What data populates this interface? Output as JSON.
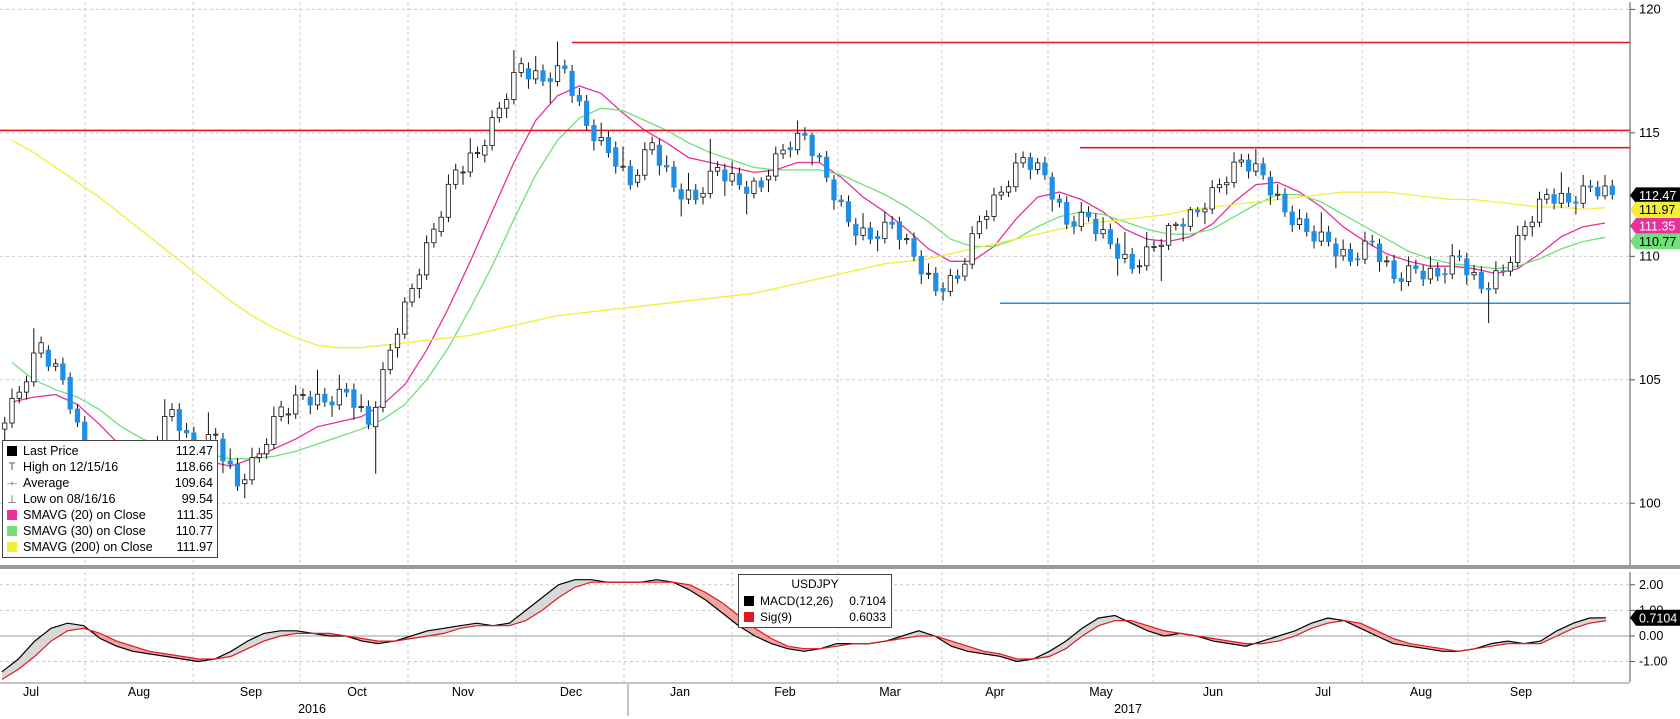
{
  "chart_data": [
    {
      "type": "candlestick",
      "title": "",
      "ylim": [
        97.5,
        120.3
      ],
      "y_ticks": [
        "120",
        "115",
        "110",
        "105",
        "100"
      ],
      "x_labels": [
        "Jul",
        "Aug",
        "Sep",
        "Oct",
        "Nov",
        "Dec",
        "Jan",
        "Feb",
        "Mar",
        "Apr",
        "May",
        "Jun",
        "Jul",
        "Aug",
        "Sep"
      ],
      "year_labels": [
        "2016",
        "2017"
      ],
      "grid": true,
      "candles_weekly": [
        {
          "o": 103.0,
          "h": 104.9,
          "l": 102.2,
          "c": 104.5
        },
        {
          "o": 104.5,
          "h": 107.5,
          "l": 104.2,
          "c": 106.5
        },
        {
          "o": 106.2,
          "h": 106.4,
          "l": 104.8,
          "c": 105.0
        },
        {
          "o": 105.1,
          "h": 105.3,
          "l": 101.8,
          "c": 102.0
        },
        {
          "o": 102.1,
          "h": 102.4,
          "l": 100.6,
          "c": 101.4
        },
        {
          "o": 101.0,
          "h": 101.4,
          "l": 99.6,
          "c": 100.1
        },
        {
          "o": 100.2,
          "h": 102.8,
          "l": 100.0,
          "c": 102.3
        },
        {
          "o": 102.2,
          "h": 104.5,
          "l": 101.9,
          "c": 103.8
        },
        {
          "o": 103.8,
          "h": 104.1,
          "l": 101.5,
          "c": 102.0
        },
        {
          "o": 102.0,
          "h": 103.7,
          "l": 101.8,
          "c": 102.8
        },
        {
          "o": 102.6,
          "h": 103.1,
          "l": 100.2,
          "c": 100.7
        },
        {
          "o": 100.8,
          "h": 102.4,
          "l": 100.2,
          "c": 102.0
        },
        {
          "o": 102.0,
          "h": 104.3,
          "l": 101.8,
          "c": 103.9
        },
        {
          "o": 103.6,
          "h": 104.8,
          "l": 103.2,
          "c": 104.4
        },
        {
          "o": 104.3,
          "h": 105.4,
          "l": 103.6,
          "c": 104.1
        },
        {
          "o": 104.1,
          "h": 105.2,
          "l": 103.5,
          "c": 104.5
        },
        {
          "o": 104.6,
          "h": 105.1,
          "l": 102.7,
          "c": 103.2
        },
        {
          "o": 103.1,
          "h": 106.5,
          "l": 101.2,
          "c": 106.2
        },
        {
          "o": 106.3,
          "h": 108.9,
          "l": 105.9,
          "c": 108.7
        },
        {
          "o": 108.7,
          "h": 111.4,
          "l": 108.3,
          "c": 111.1
        },
        {
          "o": 111.0,
          "h": 113.9,
          "l": 110.8,
          "c": 113.5
        },
        {
          "o": 113.4,
          "h": 114.8,
          "l": 112.9,
          "c": 114.2
        },
        {
          "o": 114.1,
          "h": 116.3,
          "l": 113.8,
          "c": 116.0
        },
        {
          "o": 116.0,
          "h": 118.7,
          "l": 115.6,
          "c": 117.8
        },
        {
          "o": 117.6,
          "h": 118.2,
          "l": 116.7,
          "c": 117.1
        },
        {
          "o": 117.2,
          "h": 118.7,
          "l": 116.2,
          "c": 117.6
        },
        {
          "o": 117.5,
          "h": 117.8,
          "l": 115.0,
          "c": 115.3
        },
        {
          "o": 115.3,
          "h": 115.9,
          "l": 113.8,
          "c": 114.2
        },
        {
          "o": 114.4,
          "h": 115.2,
          "l": 112.6,
          "c": 112.9
        },
        {
          "o": 113.0,
          "h": 114.9,
          "l": 112.8,
          "c": 114.6
        },
        {
          "o": 114.5,
          "h": 114.9,
          "l": 112.4,
          "c": 112.8
        },
        {
          "o": 112.7,
          "h": 113.4,
          "l": 111.6,
          "c": 112.3
        },
        {
          "o": 112.4,
          "h": 114.9,
          "l": 112.1,
          "c": 113.6
        },
        {
          "o": 113.5,
          "h": 114.0,
          "l": 112.3,
          "c": 112.9
        },
        {
          "o": 112.8,
          "h": 113.2,
          "l": 111.7,
          "c": 112.8
        },
        {
          "o": 113.1,
          "h": 114.6,
          "l": 112.6,
          "c": 114.3
        },
        {
          "o": 114.4,
          "h": 115.5,
          "l": 114.0,
          "c": 114.9
        },
        {
          "o": 114.9,
          "h": 115.0,
          "l": 112.8,
          "c": 113.2
        },
        {
          "o": 113.1,
          "h": 113.3,
          "l": 111.0,
          "c": 111.4
        },
        {
          "o": 111.3,
          "h": 111.9,
          "l": 110.3,
          "c": 110.7
        },
        {
          "o": 110.8,
          "h": 111.8,
          "l": 110.2,
          "c": 111.3
        },
        {
          "o": 111.4,
          "h": 111.6,
          "l": 109.6,
          "c": 110.0
        },
        {
          "o": 110.0,
          "h": 110.4,
          "l": 108.2,
          "c": 108.6
        },
        {
          "o": 108.7,
          "h": 109.5,
          "l": 108.2,
          "c": 109.1
        },
        {
          "o": 109.2,
          "h": 111.7,
          "l": 109.0,
          "c": 111.4
        },
        {
          "o": 111.5,
          "h": 112.9,
          "l": 111.1,
          "c": 112.6
        },
        {
          "o": 112.6,
          "h": 114.4,
          "l": 112.4,
          "c": 114.0
        },
        {
          "o": 114.0,
          "h": 114.2,
          "l": 112.9,
          "c": 113.3
        },
        {
          "o": 113.2,
          "h": 113.4,
          "l": 110.8,
          "c": 111.3
        },
        {
          "o": 111.4,
          "h": 112.2,
          "l": 110.9,
          "c": 111.6
        },
        {
          "o": 111.5,
          "h": 112.0,
          "l": 110.2,
          "c": 110.5
        },
        {
          "o": 110.5,
          "h": 111.4,
          "l": 108.8,
          "c": 109.5
        },
        {
          "o": 109.6,
          "h": 111.0,
          "l": 109.3,
          "c": 110.4
        },
        {
          "o": 110.4,
          "h": 111.4,
          "l": 109.0,
          "c": 111.3
        },
        {
          "o": 111.3,
          "h": 112.0,
          "l": 110.6,
          "c": 111.8
        },
        {
          "o": 111.8,
          "h": 113.2,
          "l": 111.3,
          "c": 112.9
        },
        {
          "o": 112.9,
          "h": 114.3,
          "l": 112.5,
          "c": 113.9
        },
        {
          "o": 113.9,
          "h": 114.5,
          "l": 113.0,
          "c": 113.3
        },
        {
          "o": 113.2,
          "h": 113.6,
          "l": 111.4,
          "c": 111.8
        },
        {
          "o": 111.8,
          "h": 112.2,
          "l": 110.7,
          "c": 111.0
        },
        {
          "o": 111.0,
          "h": 111.8,
          "l": 110.3,
          "c": 110.6
        },
        {
          "o": 110.5,
          "h": 110.9,
          "l": 109.3,
          "c": 109.8
        },
        {
          "o": 109.9,
          "h": 111.0,
          "l": 109.6,
          "c": 110.6
        },
        {
          "o": 110.5,
          "h": 110.7,
          "l": 108.7,
          "c": 109.1
        },
        {
          "o": 109.1,
          "h": 110.0,
          "l": 108.6,
          "c": 109.5
        },
        {
          "o": 109.4,
          "h": 110.0,
          "l": 108.8,
          "c": 109.2
        },
        {
          "o": 109.3,
          "h": 110.5,
          "l": 108.9,
          "c": 110.0
        },
        {
          "o": 109.9,
          "h": 110.2,
          "l": 108.3,
          "c": 108.7
        },
        {
          "o": 108.7,
          "h": 109.8,
          "l": 107.3,
          "c": 109.4
        },
        {
          "o": 109.4,
          "h": 111.6,
          "l": 109.2,
          "c": 111.2
        },
        {
          "o": 111.2,
          "h": 112.8,
          "l": 110.8,
          "c": 112.5
        },
        {
          "o": 112.5,
          "h": 113.4,
          "l": 111.9,
          "c": 112.2
        },
        {
          "o": 112.2,
          "h": 113.3,
          "l": 111.7,
          "c": 112.8
        },
        {
          "o": 112.8,
          "h": 113.3,
          "l": 112.3,
          "c": 112.5
        }
      ],
      "series": [
        {
          "name": "SMAVG (20) on Close",
          "color": "#e8319a",
          "values": [
            104.1,
            104.3,
            104.4,
            104.0,
            103.2,
            102.3,
            101.8,
            101.7,
            101.8,
            101.7,
            101.5,
            101.8,
            102.2,
            102.6,
            103.1,
            103.3,
            103.5,
            104.0,
            104.8,
            106.2,
            107.9,
            109.8,
            111.8,
            113.8,
            115.5,
            116.5,
            116.9,
            116.6,
            115.8,
            115.1,
            114.6,
            114.0,
            113.8,
            113.6,
            113.4,
            113.5,
            113.8,
            113.8,
            113.2,
            112.4,
            111.8,
            111.1,
            110.3,
            109.8,
            109.8,
            110.4,
            111.5,
            112.4,
            112.6,
            112.3,
            111.8,
            111.1,
            110.7,
            110.6,
            110.8,
            111.3,
            112.2,
            112.9,
            113.0,
            112.6,
            112.0,
            111.2,
            110.6,
            110.1,
            109.8,
            109.6,
            109.6,
            109.5,
            109.3,
            109.5,
            110.1,
            110.8,
            111.2,
            111.35
          ]
        },
        {
          "name": "SMAVG (30) on Close",
          "color": "#6fe07a",
          "values": [
            105.7,
            105.0,
            104.6,
            104.3,
            103.8,
            103.1,
            102.6,
            102.3,
            102.1,
            102.0,
            101.8,
            101.8,
            101.9,
            102.1,
            102.4,
            102.7,
            103.0,
            103.4,
            104.0,
            105.0,
            106.3,
            107.9,
            109.6,
            111.5,
            113.3,
            114.7,
            115.6,
            116.0,
            115.9,
            115.5,
            115.1,
            114.6,
            114.2,
            113.9,
            113.6,
            113.5,
            113.5,
            113.5,
            113.3,
            112.9,
            112.5,
            112.0,
            111.4,
            110.7,
            110.4,
            110.4,
            110.7,
            111.2,
            111.6,
            111.8,
            111.7,
            111.4,
            111.1,
            110.9,
            110.9,
            111.1,
            111.6,
            112.1,
            112.5,
            112.5,
            112.2,
            111.7,
            111.2,
            110.7,
            110.2,
            109.9,
            109.7,
            109.6,
            109.5,
            109.6,
            109.9,
            110.3,
            110.6,
            110.77
          ]
        },
        {
          "name": "SMAVG (200) on Close",
          "color": "#f2ee3a",
          "values": [
            114.7,
            114.2,
            113.6,
            113.0,
            112.4,
            111.7,
            111.0,
            110.3,
            109.6,
            108.9,
            108.2,
            107.6,
            107.1,
            106.7,
            106.4,
            106.3,
            106.3,
            106.4,
            106.5,
            106.6,
            106.7,
            106.8,
            107.0,
            107.2,
            107.4,
            107.6,
            107.7,
            107.8,
            107.9,
            108.0,
            108.1,
            108.2,
            108.3,
            108.4,
            108.5,
            108.7,
            108.9,
            109.1,
            109.3,
            109.5,
            109.7,
            109.8,
            109.9,
            110.1,
            110.3,
            110.5,
            110.7,
            110.9,
            111.1,
            111.3,
            111.4,
            111.5,
            111.6,
            111.7,
            111.9,
            112.0,
            112.1,
            112.2,
            112.3,
            112.4,
            112.5,
            112.6,
            112.6,
            112.6,
            112.5,
            112.4,
            112.3,
            112.3,
            112.2,
            112.1,
            112.0,
            112.0,
            111.9,
            111.97
          ]
        }
      ],
      "resistance_lines": [
        {
          "y": 118.66,
          "color": "#e0181f"
        },
        {
          "y": 115.1,
          "color": "#e0181f"
        },
        {
          "y": 114.4,
          "color": "#e0181f"
        }
      ],
      "support_lines": [
        {
          "y": 108.1,
          "color": "#2b8fd8"
        }
      ],
      "right_labels": [
        {
          "text": "112.47",
          "value": 112.47,
          "bg": "#000000",
          "fg": "#ffffff"
        },
        {
          "text": "111.97",
          "value": 111.97,
          "bg": "#f2ee3a",
          "fg": "#000000"
        },
        {
          "text": "111.35",
          "value": 111.35,
          "bg": "#e8319a",
          "fg": "#ffffff"
        },
        {
          "text": "110.77",
          "value": 110.77,
          "bg": "#6fe07a",
          "fg": "#000000"
        }
      ]
    },
    {
      "type": "line",
      "title": "USDJPY",
      "ylim": [
        -1.8,
        2.5
      ],
      "y_ticks": [
        "2.00",
        "1.00",
        "0.00",
        "-1.00"
      ],
      "series": [
        {
          "name": "MACD(12,26)",
          "color": "#000000",
          "values": [
            -1.4,
            -0.9,
            -0.2,
            0.3,
            0.5,
            0.4,
            -0.1,
            -0.4,
            -0.6,
            -0.7,
            -0.8,
            -0.9,
            -1.0,
            -0.9,
            -0.6,
            -0.2,
            0.1,
            0.2,
            0.2,
            0.1,
            0.0,
            0.0,
            -0.2,
            -0.3,
            -0.2,
            0.0,
            0.2,
            0.3,
            0.4,
            0.5,
            0.4,
            0.5,
            1.0,
            1.5,
            2.0,
            2.2,
            2.2,
            2.1,
            2.1,
            2.1,
            2.2,
            2.1,
            1.8,
            1.4,
            0.9,
            0.4,
            0.0,
            -0.3,
            -0.5,
            -0.6,
            -0.5,
            -0.3,
            -0.3,
            -0.3,
            -0.2,
            0.0,
            0.2,
            0.0,
            -0.4,
            -0.6,
            -0.7,
            -0.8,
            -1.0,
            -0.9,
            -0.6,
            -0.2,
            0.3,
            0.7,
            0.8,
            0.5,
            0.2,
            0.0,
            0.1,
            0.0,
            -0.2,
            -0.3,
            -0.4,
            -0.2,
            0.0,
            0.2,
            0.5,
            0.7,
            0.6,
            0.3,
            0.0,
            -0.3,
            -0.4,
            -0.5,
            -0.6,
            -0.6,
            -0.5,
            -0.3,
            -0.2,
            -0.3,
            -0.2,
            0.2,
            0.5,
            0.7,
            0.71
          ]
        },
        {
          "name": "Sig(9)",
          "color": "#e0181f",
          "values": [
            -1.7,
            -1.3,
            -0.8,
            -0.2,
            0.2,
            0.3,
            0.1,
            -0.2,
            -0.4,
            -0.6,
            -0.7,
            -0.8,
            -0.9,
            -0.9,
            -0.8,
            -0.5,
            -0.2,
            0.0,
            0.1,
            0.1,
            0.1,
            0.0,
            -0.1,
            -0.2,
            -0.2,
            -0.1,
            0.0,
            0.1,
            0.3,
            0.4,
            0.4,
            0.4,
            0.6,
            1.0,
            1.5,
            1.9,
            2.1,
            2.1,
            2.1,
            2.1,
            2.1,
            2.1,
            2.0,
            1.7,
            1.3,
            0.8,
            0.3,
            -0.1,
            -0.4,
            -0.5,
            -0.5,
            -0.4,
            -0.3,
            -0.3,
            -0.2,
            -0.1,
            0.0,
            0.0,
            -0.2,
            -0.4,
            -0.6,
            -0.7,
            -0.9,
            -0.9,
            -0.8,
            -0.5,
            0.0,
            0.4,
            0.6,
            0.6,
            0.4,
            0.2,
            0.1,
            0.0,
            -0.1,
            -0.2,
            -0.3,
            -0.3,
            -0.2,
            0.0,
            0.3,
            0.5,
            0.6,
            0.5,
            0.2,
            -0.1,
            -0.3,
            -0.4,
            -0.5,
            -0.6,
            -0.5,
            -0.4,
            -0.3,
            -0.3,
            -0.3,
            0.0,
            0.3,
            0.5,
            0.6
          ]
        }
      ],
      "right_labels": [
        {
          "text": "0.7104",
          "value": 0.7104,
          "bg": "#000000",
          "fg": "#ffffff"
        }
      ]
    }
  ],
  "legend": {
    "items": [
      {
        "marker": "square",
        "color": "#000000",
        "label": "Last Price",
        "value": "112.47"
      },
      {
        "marker": "T",
        "color": "#555555",
        "label": "High on 12/15/16",
        "value": "118.66"
      },
      {
        "marker": "-+-",
        "color": "#555555",
        "label": "Average",
        "value": "109.64"
      },
      {
        "marker": "⊥",
        "color": "#555555",
        "label": "Low on 08/16/16",
        "value": "99.54"
      },
      {
        "marker": "square",
        "color": "#e8319a",
        "label": "SMAVG (20) on Close",
        "value": "111.35"
      },
      {
        "marker": "square",
        "color": "#6fe07a",
        "label": "SMAVG (30) on Close",
        "value": "110.77"
      },
      {
        "marker": "square",
        "color": "#f2ee3a",
        "label": "SMAVG (200) on Close",
        "value": "111.97"
      }
    ]
  },
  "macd_legend": {
    "title": "USDJPY",
    "items": [
      {
        "color": "#000000",
        "label": "MACD(12,26)",
        "value": "0.7104"
      },
      {
        "color": "#e0181f",
        "label": "Sig(9)",
        "value": "0.6033"
      }
    ]
  }
}
